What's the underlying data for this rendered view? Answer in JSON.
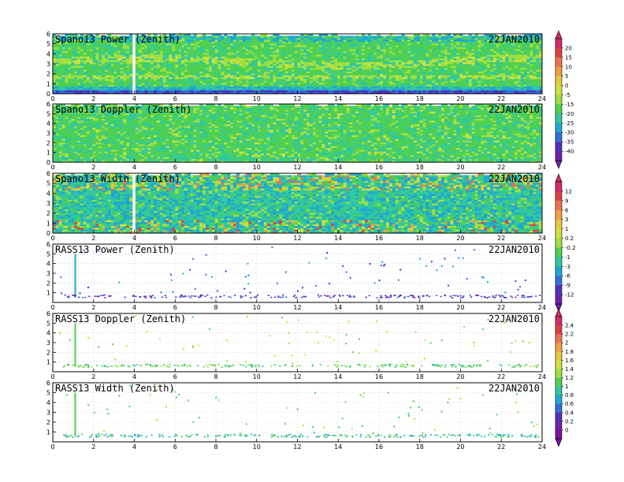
{
  "chart_data": [
    {
      "type": "heatmap",
      "title": "Spano13 Power (Zenith)",
      "date": "22JAN2010",
      "x_ticks": [
        "0",
        "2",
        "4",
        "6",
        "8",
        "10",
        "12",
        "14",
        "16",
        "18",
        "20",
        "22",
        "24"
      ],
      "y_ticks": [
        "0",
        "1",
        "2",
        "3",
        "4",
        "5",
        "6"
      ],
      "xlim": [
        0,
        24
      ],
      "ylim": [
        0,
        6
      ],
      "colorbar": 0
    },
    {
      "type": "heatmap",
      "title": "Spano13 Doppler (Zenith)",
      "date": "22JAN2010",
      "x_ticks": [
        "0",
        "2",
        "4",
        "6",
        "8",
        "10",
        "12",
        "14",
        "16",
        "18",
        "20",
        "22",
        "24"
      ],
      "y_ticks": [
        "0",
        "1",
        "2",
        "3",
        "4",
        "5",
        "6"
      ],
      "xlim": [
        0,
        24
      ],
      "ylim": [
        0,
        6
      ],
      "colorbar": 0
    },
    {
      "type": "heatmap",
      "title": "Spano13 Width (Zenith)",
      "date": "22JAN2010",
      "x_ticks": [
        "0",
        "2",
        "4",
        "6",
        "8",
        "10",
        "12",
        "14",
        "16",
        "18",
        "20",
        "22",
        "24"
      ],
      "y_ticks": [
        "0",
        "1",
        "2",
        "3",
        "4",
        "5",
        "6"
      ],
      "xlim": [
        0,
        24
      ],
      "ylim": [
        0,
        6
      ],
      "colorbar": 1
    },
    {
      "type": "scatter",
      "title": "RASS13 Power (Zenith)",
      "date": "22JAN2010",
      "x_ticks": [
        "0",
        "2",
        "4",
        "6",
        "8",
        "10",
        "12",
        "14",
        "16",
        "18",
        "20",
        "22",
        "24"
      ],
      "y_ticks": [
        "1",
        "2",
        "3",
        "4",
        "5",
        "6"
      ],
      "xlim": [
        0,
        24
      ],
      "ylim": [
        0,
        6
      ],
      "colorbar": 1
    },
    {
      "type": "scatter",
      "title": "RASS13 Doppler (Zenith)",
      "date": "22JAN2010",
      "x_ticks": [
        "0",
        "2",
        "4",
        "6",
        "8",
        "10",
        "12",
        "14",
        "16",
        "18",
        "20",
        "22",
        "24"
      ],
      "y_ticks": [
        "1",
        "2",
        "3",
        "4",
        "5",
        "6"
      ],
      "xlim": [
        0,
        24
      ],
      "ylim": [
        0,
        6
      ],
      "colorbar": 2
    },
    {
      "type": "scatter",
      "title": "RASS13 Width (Zenith)",
      "date": "22JAN2010",
      "x_ticks": [
        "0",
        "2",
        "4",
        "6",
        "8",
        "10",
        "12",
        "14",
        "16",
        "18",
        "20",
        "22",
        "24"
      ],
      "y_ticks": [
        "1",
        "2",
        "3",
        "4",
        "5",
        "6"
      ],
      "xlim": [
        0,
        24
      ],
      "ylim": [
        0,
        6
      ],
      "colorbar": 2
    }
  ],
  "colorbars": [
    {
      "labels": [
        "20",
        "15",
        "10",
        "5",
        "0",
        "-5",
        "-15",
        "-20",
        "-25",
        "-30",
        "-35",
        "-40"
      ],
      "colors": [
        "#d42a6a",
        "#e04040",
        "#f07050",
        "#f0a040",
        "#e6c840",
        "#d0e040",
        "#9ee040",
        "#50d050",
        "#30c8a0",
        "#20a8d0",
        "#3070e0",
        "#5030c8",
        "#7020b0"
      ]
    },
    {
      "labels": [
        "12",
        "9",
        "6",
        "3",
        "1",
        "0.2",
        "-0.2",
        "-1",
        "-3",
        "-6",
        "-9",
        "-12"
      ],
      "colors": [
        "#d42a6a",
        "#e04040",
        "#f07050",
        "#f0a040",
        "#e6c840",
        "#d0e040",
        "#9ee040",
        "#50d050",
        "#30c8a0",
        "#20a8d0",
        "#3070e0",
        "#5030c8",
        "#7020b0"
      ]
    },
    {
      "labels": [
        "2.4",
        "2.2",
        "2",
        "1.8",
        "1.6",
        "1.4",
        "1.2",
        "1",
        "0.8",
        "0.6",
        "0.4",
        "0.2",
        "0"
      ],
      "colors": [
        "#d42a6a",
        "#e04040",
        "#f07050",
        "#f0a040",
        "#e6c840",
        "#d0e040",
        "#9ee040",
        "#50d050",
        "#30c8a0",
        "#20a8d0",
        "#3070e0",
        "#5030c8",
        "#7020b0",
        "#8010a0"
      ]
    }
  ]
}
